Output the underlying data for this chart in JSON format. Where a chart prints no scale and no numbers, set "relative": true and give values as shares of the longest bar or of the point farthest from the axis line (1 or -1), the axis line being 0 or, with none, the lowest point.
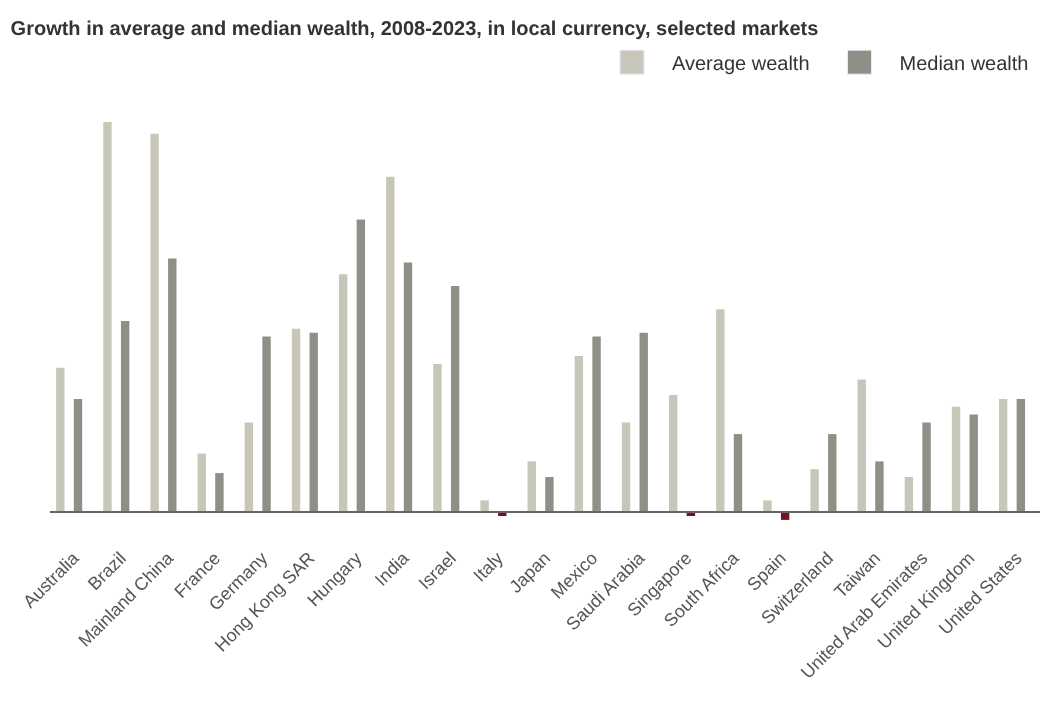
{
  "chart_data": {
    "type": "bar",
    "title": "Growth in average and median wealth, 2008-2023, in local currency, selected markets",
    "relative": true,
    "legend": "top right",
    "categories": [
      "Australia",
      "Brazil",
      "Mainland China",
      "France",
      "Germany",
      "Hong Kong SAR",
      "Hungary",
      "India",
      "Israel",
      "Italy",
      "Japan",
      "Mexico",
      "Saudi Arabia",
      "Singapore",
      "South Africa",
      "Spain",
      "Switzerland",
      "Taiwan",
      "United Arab Emirates",
      "United Kingdom",
      "United States"
    ],
    "series": [
      {
        "name": "Average wealth",
        "color": "#c8c5b9",
        "values": [
          0.37,
          1,
          0.97,
          0.15,
          0.23,
          0.47,
          0.61,
          0.86,
          0.38,
          0.03,
          0.13,
          0.4,
          0.23,
          0.3,
          0.52,
          0.03,
          0.11,
          0.34,
          0.09,
          0.27,
          0.29
        ]
      },
      {
        "name": "Median wealth",
        "color": "#8f8f87",
        "colors": [
          "#8f8f87",
          "#8f8f87",
          "#8f8f87",
          "#8f8f87",
          "#8f8f87",
          "#8f8f87",
          "#8f8f87",
          "#8f8f87",
          "#8f8f87",
          "#7a1020",
          "#8f8f87",
          "#8f8f87",
          "#8f8f87",
          "#7a1020",
          "#8f8f87",
          "#7a1020",
          "#8f8f87",
          "#8f8f87",
          "#8f8f87",
          "#8f8f87",
          "#8f8f87"
        ],
        "values": [
          0.29,
          0.49,
          0.65,
          0.1,
          0.45,
          0.46,
          0.75,
          0.64,
          0.58,
          -0.01,
          0.09,
          0.45,
          0.46,
          -0.01,
          0.2,
          -0.02,
          0.2,
          0.13,
          0.23,
          0.25,
          0.29
        ]
      }
    ]
  }
}
